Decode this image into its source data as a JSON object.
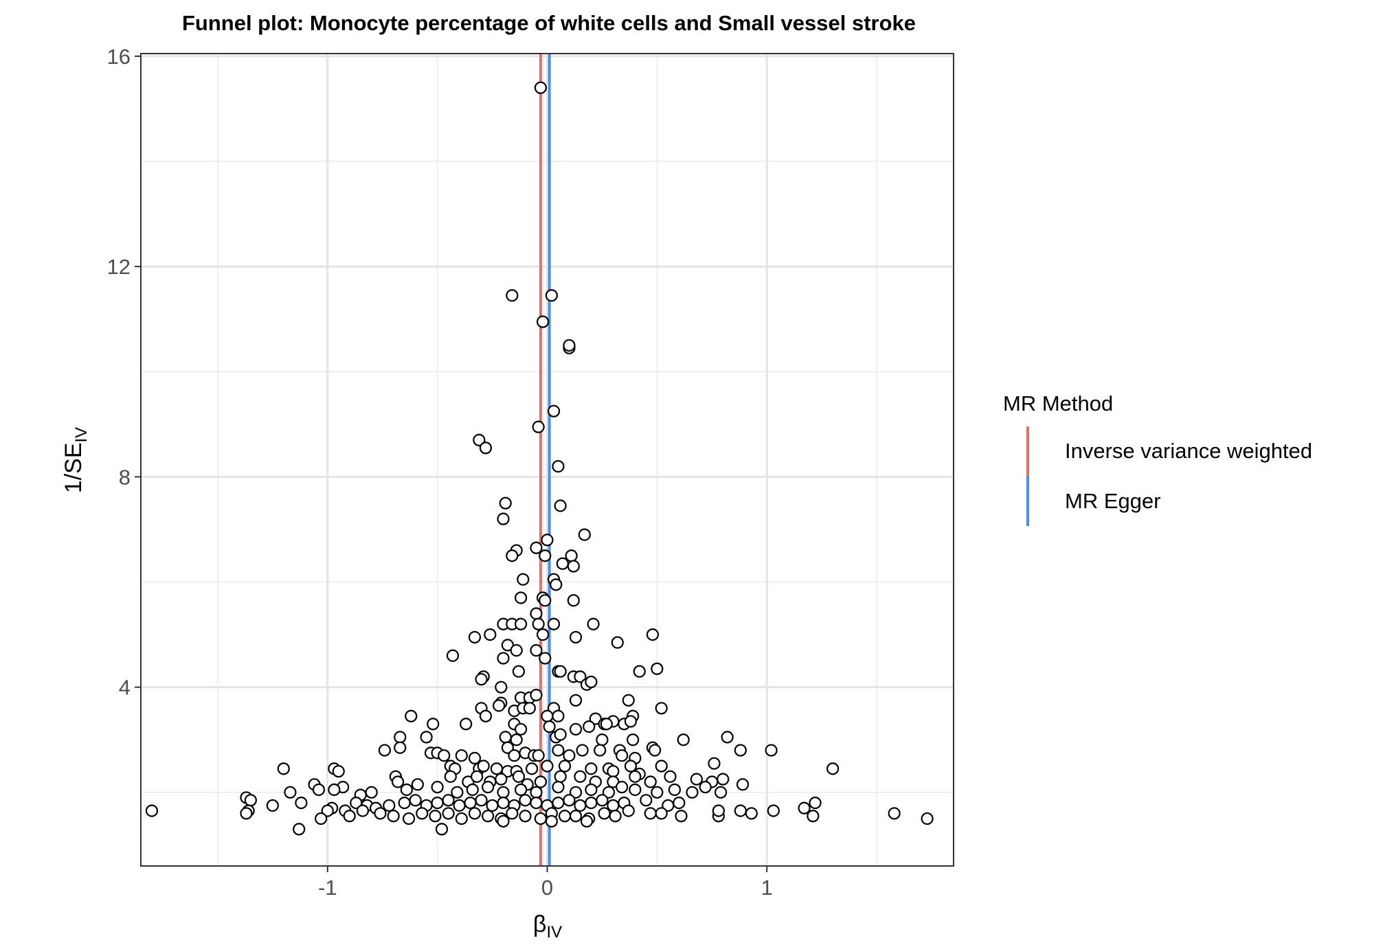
{
  "chart_data": {
    "type": "scatter",
    "title": "Funnel plot: Monocyte percentage of white cells and Small vessel stroke",
    "xlabel": {
      "main": "β",
      "sub": "IV"
    },
    "ylabel": {
      "main": "1/SE",
      "sub": "IV"
    },
    "xlim": [
      -1.85,
      1.85
    ],
    "ylim": [
      0.6,
      16.05
    ],
    "x_ticks": [
      -1,
      0,
      1
    ],
    "x_tick_labels": [
      "-1",
      "0",
      "1"
    ],
    "y_ticks": [
      4,
      8,
      12,
      16
    ],
    "y_tick_labels": [
      "4",
      "8",
      "12",
      "16"
    ],
    "x_minor": [
      -1.5,
      -0.5,
      0.5,
      1.5
    ],
    "y_minor": [
      2,
      6,
      10,
      14
    ],
    "grid": true,
    "legend": {
      "title": "MR Method",
      "position": "right",
      "entries": [
        {
          "label": "Inverse variance weighted",
          "color": "#E0736A"
        },
        {
          "label": "MR Egger",
          "color": "#4D8EEC"
        }
      ]
    },
    "lines": [
      {
        "name": "Inverse variance weighted",
        "x": -0.03,
        "color": "#E0736A"
      },
      {
        "name": "MR Egger",
        "x": 0.01,
        "color": "#4D8EEC"
      }
    ],
    "points": [
      [
        -0.03,
        15.4
      ],
      [
        -0.16,
        11.45
      ],
      [
        0.02,
        11.45
      ],
      [
        -0.02,
        10.95
      ],
      [
        0.1,
        10.45
      ],
      [
        0.1,
        10.5
      ],
      [
        0.03,
        9.25
      ],
      [
        -0.04,
        8.95
      ],
      [
        -0.31,
        8.7
      ],
      [
        -0.28,
        8.55
      ],
      [
        0.05,
        8.2
      ],
      [
        -0.19,
        7.5
      ],
      [
        0.06,
        7.45
      ],
      [
        -0.2,
        7.2
      ],
      [
        0.17,
        6.9
      ],
      [
        -0.14,
        6.6
      ],
      [
        -0.05,
        6.65
      ],
      [
        0.0,
        6.8
      ],
      [
        -0.16,
        6.5
      ],
      [
        0.11,
        6.5
      ],
      [
        -0.01,
        6.5
      ],
      [
        0.07,
        6.35
      ],
      [
        0.12,
        6.3
      ],
      [
        -0.11,
        6.05
      ],
      [
        0.03,
        6.05
      ],
      [
        0.04,
        5.95
      ],
      [
        -0.12,
        5.7
      ],
      [
        -0.02,
        5.7
      ],
      [
        -0.01,
        5.65
      ],
      [
        0.12,
        5.65
      ],
      [
        -0.05,
        5.4
      ],
      [
        -0.2,
        5.2
      ],
      [
        -0.16,
        5.2
      ],
      [
        -0.12,
        5.2
      ],
      [
        -0.04,
        5.2
      ],
      [
        0.03,
        5.2
      ],
      [
        0.21,
        5.2
      ],
      [
        -0.26,
        5.0
      ],
      [
        -0.33,
        4.95
      ],
      [
        -0.02,
        5.0
      ],
      [
        0.13,
        4.95
      ],
      [
        0.32,
        4.85
      ],
      [
        0.48,
        5.0
      ],
      [
        -0.18,
        4.8
      ],
      [
        -0.14,
        4.7
      ],
      [
        -0.05,
        4.7
      ],
      [
        -0.43,
        4.6
      ],
      [
        -0.2,
        4.55
      ],
      [
        -0.01,
        4.55
      ],
      [
        0.05,
        4.3
      ],
      [
        0.06,
        4.3
      ],
      [
        -0.13,
        4.3
      ],
      [
        0.42,
        4.3
      ],
      [
        0.5,
        4.35
      ],
      [
        -0.29,
        4.2
      ],
      [
        -0.3,
        4.15
      ],
      [
        0.12,
        4.2
      ],
      [
        0.15,
        4.2
      ],
      [
        0.18,
        4.05
      ],
      [
        0.2,
        4.1
      ],
      [
        -0.21,
        4.0
      ],
      [
        -0.12,
        3.8
      ],
      [
        -0.08,
        3.8
      ],
      [
        -0.05,
        3.85
      ],
      [
        -0.21,
        3.7
      ],
      [
        -0.22,
        3.65
      ],
      [
        0.13,
        3.75
      ],
      [
        0.37,
        3.75
      ],
      [
        -0.3,
        3.6
      ],
      [
        -0.15,
        3.55
      ],
      [
        -0.11,
        3.6
      ],
      [
        -0.08,
        3.6
      ],
      [
        0.03,
        3.6
      ],
      [
        0.39,
        3.45
      ],
      [
        0.52,
        3.6
      ],
      [
        -0.62,
        3.45
      ],
      [
        -0.28,
        3.45
      ],
      [
        0.0,
        3.45
      ],
      [
        0.05,
        3.45
      ],
      [
        0.22,
        3.4
      ],
      [
        0.3,
        3.35
      ],
      [
        0.35,
        3.3
      ],
      [
        0.38,
        3.35
      ],
      [
        -0.52,
        3.3
      ],
      [
        -0.37,
        3.3
      ],
      [
        -0.15,
        3.3
      ],
      [
        -0.12,
        3.2
      ],
      [
        0.01,
        3.25
      ],
      [
        0.13,
        3.2
      ],
      [
        0.19,
        3.25
      ],
      [
        0.26,
        3.3
      ],
      [
        0.27,
        3.3
      ],
      [
        -0.67,
        3.05
      ],
      [
        -0.55,
        3.05
      ],
      [
        -0.19,
        3.05
      ],
      [
        -0.14,
        3.0
      ],
      [
        0.04,
        3.05
      ],
      [
        0.06,
        3.1
      ],
      [
        0.25,
        3.0
      ],
      [
        0.39,
        3.0
      ],
      [
        0.62,
        3.0
      ],
      [
        0.82,
        3.05
      ],
      [
        -0.74,
        2.8
      ],
      [
        -0.67,
        2.85
      ],
      [
        -0.53,
        2.75
      ],
      [
        -0.5,
        2.75
      ],
      [
        -0.47,
        2.7
      ],
      [
        -0.39,
        2.7
      ],
      [
        -0.33,
        2.65
      ],
      [
        -0.18,
        2.85
      ],
      [
        -0.15,
        2.7
      ],
      [
        -0.1,
        2.75
      ],
      [
        -0.06,
        2.7
      ],
      [
        -0.04,
        2.7
      ],
      [
        0.05,
        2.8
      ],
      [
        0.1,
        2.7
      ],
      [
        0.16,
        2.8
      ],
      [
        0.24,
        2.8
      ],
      [
        0.33,
        2.8
      ],
      [
        0.34,
        2.7
      ],
      [
        0.4,
        2.65
      ],
      [
        0.48,
        2.85
      ],
      [
        0.49,
        2.8
      ],
      [
        0.88,
        2.8
      ],
      [
        1.02,
        2.8
      ],
      [
        -1.2,
        2.45
      ],
      [
        -0.97,
        2.45
      ],
      [
        -0.95,
        2.4
      ],
      [
        -0.44,
        2.5
      ],
      [
        -0.42,
        2.45
      ],
      [
        -0.31,
        2.45
      ],
      [
        -0.29,
        2.5
      ],
      [
        -0.23,
        2.45
      ],
      [
        -0.18,
        2.4
      ],
      [
        -0.14,
        2.4
      ],
      [
        -0.07,
        2.45
      ],
      [
        0.0,
        2.5
      ],
      [
        0.08,
        2.5
      ],
      [
        0.2,
        2.45
      ],
      [
        0.28,
        2.45
      ],
      [
        0.3,
        2.4
      ],
      [
        0.38,
        2.5
      ],
      [
        0.42,
        2.35
      ],
      [
        0.52,
        2.5
      ],
      [
        0.76,
        2.55
      ],
      [
        1.3,
        2.45
      ],
      [
        -1.06,
        2.15
      ],
      [
        -0.93,
        2.1
      ],
      [
        -0.69,
        2.3
      ],
      [
        -0.68,
        2.2
      ],
      [
        -0.59,
        2.15
      ],
      [
        -0.44,
        2.3
      ],
      [
        -0.36,
        2.2
      ],
      [
        -0.32,
        2.3
      ],
      [
        -0.26,
        2.2
      ],
      [
        -0.21,
        2.25
      ],
      [
        -0.13,
        2.3
      ],
      [
        -0.09,
        2.15
      ],
      [
        -0.03,
        2.2
      ],
      [
        0.06,
        2.3
      ],
      [
        0.15,
        2.3
      ],
      [
        0.22,
        2.2
      ],
      [
        0.3,
        2.2
      ],
      [
        0.4,
        2.3
      ],
      [
        0.47,
        2.2
      ],
      [
        0.56,
        2.3
      ],
      [
        0.68,
        2.25
      ],
      [
        0.75,
        2.2
      ],
      [
        0.8,
        2.25
      ],
      [
        0.89,
        2.15
      ],
      [
        -1.17,
        2.0
      ],
      [
        -1.04,
        2.05
      ],
      [
        -0.97,
        2.05
      ],
      [
        -0.85,
        1.95
      ],
      [
        -0.8,
        2.0
      ],
      [
        -0.64,
        2.05
      ],
      [
        -0.5,
        2.1
      ],
      [
        -0.41,
        2.0
      ],
      [
        -0.34,
        2.05
      ],
      [
        -0.27,
        2.1
      ],
      [
        -0.2,
        2.0
      ],
      [
        -0.12,
        2.05
      ],
      [
        -0.05,
        2.0
      ],
      [
        0.05,
        2.1
      ],
      [
        0.13,
        2.0
      ],
      [
        0.2,
        2.05
      ],
      [
        0.28,
        2.0
      ],
      [
        0.34,
        2.1
      ],
      [
        0.4,
        2.05
      ],
      [
        0.5,
        2.0
      ],
      [
        0.58,
        2.05
      ],
      [
        0.66,
        2.0
      ],
      [
        0.72,
        2.1
      ],
      [
        0.79,
        2.0
      ],
      [
        -1.37,
        1.9
      ],
      [
        -1.35,
        1.85
      ],
      [
        -1.25,
        1.75
      ],
      [
        -1.12,
        1.8
      ],
      [
        -0.98,
        1.7
      ],
      [
        -0.92,
        1.65
      ],
      [
        -0.87,
        1.8
      ],
      [
        -0.82,
        1.75
      ],
      [
        -0.78,
        1.7
      ],
      [
        -0.72,
        1.75
      ],
      [
        -0.65,
        1.8
      ],
      [
        -0.6,
        1.85
      ],
      [
        -0.55,
        1.75
      ],
      [
        -0.5,
        1.8
      ],
      [
        -0.45,
        1.85
      ],
      [
        -0.4,
        1.75
      ],
      [
        -0.35,
        1.8
      ],
      [
        -0.3,
        1.85
      ],
      [
        -0.25,
        1.75
      ],
      [
        -0.2,
        1.8
      ],
      [
        -0.15,
        1.75
      ],
      [
        -0.1,
        1.85
      ],
      [
        -0.05,
        1.8
      ],
      [
        0.0,
        1.75
      ],
      [
        0.05,
        1.8
      ],
      [
        0.1,
        1.85
      ],
      [
        0.15,
        1.75
      ],
      [
        0.2,
        1.8
      ],
      [
        0.25,
        1.85
      ],
      [
        0.3,
        1.75
      ],
      [
        0.35,
        1.8
      ],
      [
        0.45,
        1.85
      ],
      [
        0.55,
        1.75
      ],
      [
        0.6,
        1.8
      ],
      [
        1.22,
        1.8
      ],
      [
        1.17,
        1.7
      ],
      [
        -1.8,
        1.65
      ],
      [
        -1.36,
        1.65
      ],
      [
        -1.37,
        1.6
      ],
      [
        -1.0,
        1.65
      ],
      [
        -0.9,
        1.55
      ],
      [
        -0.84,
        1.65
      ],
      [
        -0.76,
        1.6
      ],
      [
        -0.7,
        1.55
      ],
      [
        -0.63,
        1.5
      ],
      [
        -0.57,
        1.6
      ],
      [
        -0.51,
        1.55
      ],
      [
        -0.45,
        1.6
      ],
      [
        -0.39,
        1.5
      ],
      [
        -0.33,
        1.6
      ],
      [
        -0.27,
        1.55
      ],
      [
        -0.21,
        1.5
      ],
      [
        -0.16,
        1.6
      ],
      [
        -0.1,
        1.55
      ],
      [
        -0.03,
        1.5
      ],
      [
        0.02,
        1.6
      ],
      [
        0.08,
        1.55
      ],
      [
        0.13,
        1.55
      ],
      [
        0.19,
        1.5
      ],
      [
        0.26,
        1.6
      ],
      [
        0.31,
        1.55
      ],
      [
        0.37,
        1.65
      ],
      [
        0.47,
        1.6
      ],
      [
        0.52,
        1.6
      ],
      [
        0.61,
        1.55
      ],
      [
        0.78,
        1.55
      ],
      [
        0.78,
        1.65
      ],
      [
        0.88,
        1.65
      ],
      [
        0.93,
        1.6
      ],
      [
        1.03,
        1.65
      ],
      [
        1.21,
        1.55
      ],
      [
        1.58,
        1.6
      ],
      [
        1.73,
        1.5
      ],
      [
        -1.13,
        1.3
      ],
      [
        -1.03,
        1.5
      ],
      [
        -0.48,
        1.3
      ],
      [
        -0.2,
        1.45
      ],
      [
        0.02,
        1.45
      ],
      [
        0.18,
        1.45
      ]
    ]
  }
}
